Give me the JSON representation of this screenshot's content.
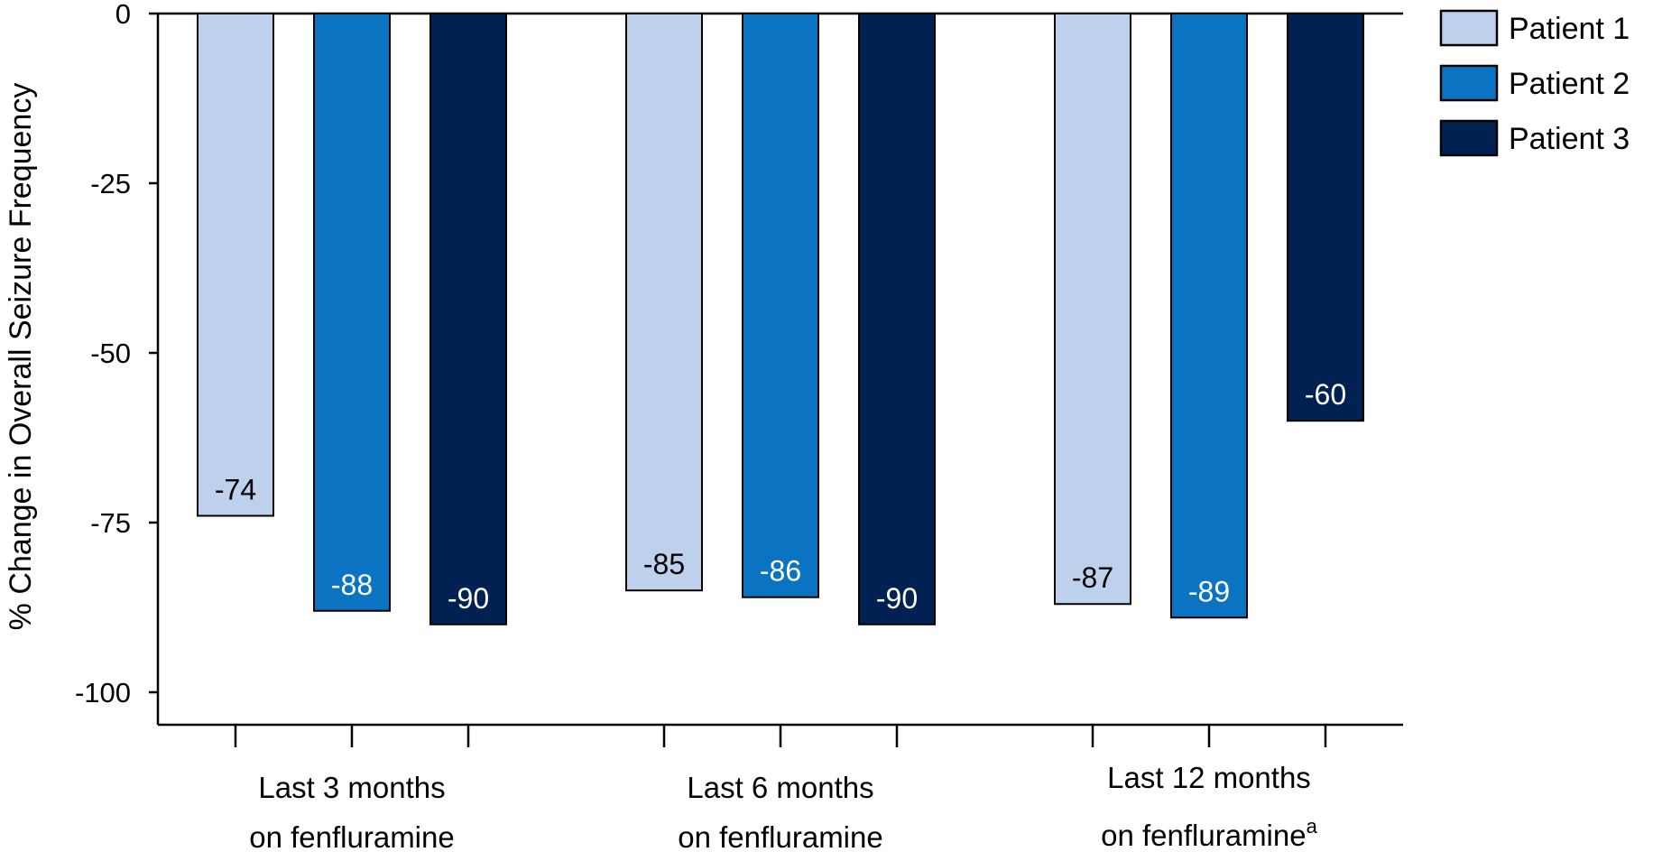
{
  "chart_data": {
    "type": "bar",
    "ylabel": "% Change in Overall Seizure Frequency",
    "ylim": [
      -100,
      0
    ],
    "yticks": [
      0,
      -25,
      -50,
      -75,
      -100
    ],
    "categories": [
      [
        "Last 3 months",
        "on fenfluramine",
        ""
      ],
      [
        "Last 6 months",
        "on fenfluramine",
        ""
      ],
      [
        "Last 12 months",
        "on fenfluramine",
        "a"
      ]
    ],
    "series": [
      {
        "name": "Patient 1",
        "color": "#bdd0ec",
        "label_color": "#000000",
        "values": [
          -74,
          -85,
          -87
        ]
      },
      {
        "name": "Patient 2",
        "color": "#0a74c2",
        "label_color": "#ffffff",
        "values": [
          -88,
          -86,
          -89
        ]
      },
      {
        "name": "Patient 3",
        "color": "#002152",
        "label_color": "#ffffff",
        "values": [
          -90,
          -90,
          -60
        ]
      }
    ],
    "legend_position": "top-right",
    "grid": false
  }
}
